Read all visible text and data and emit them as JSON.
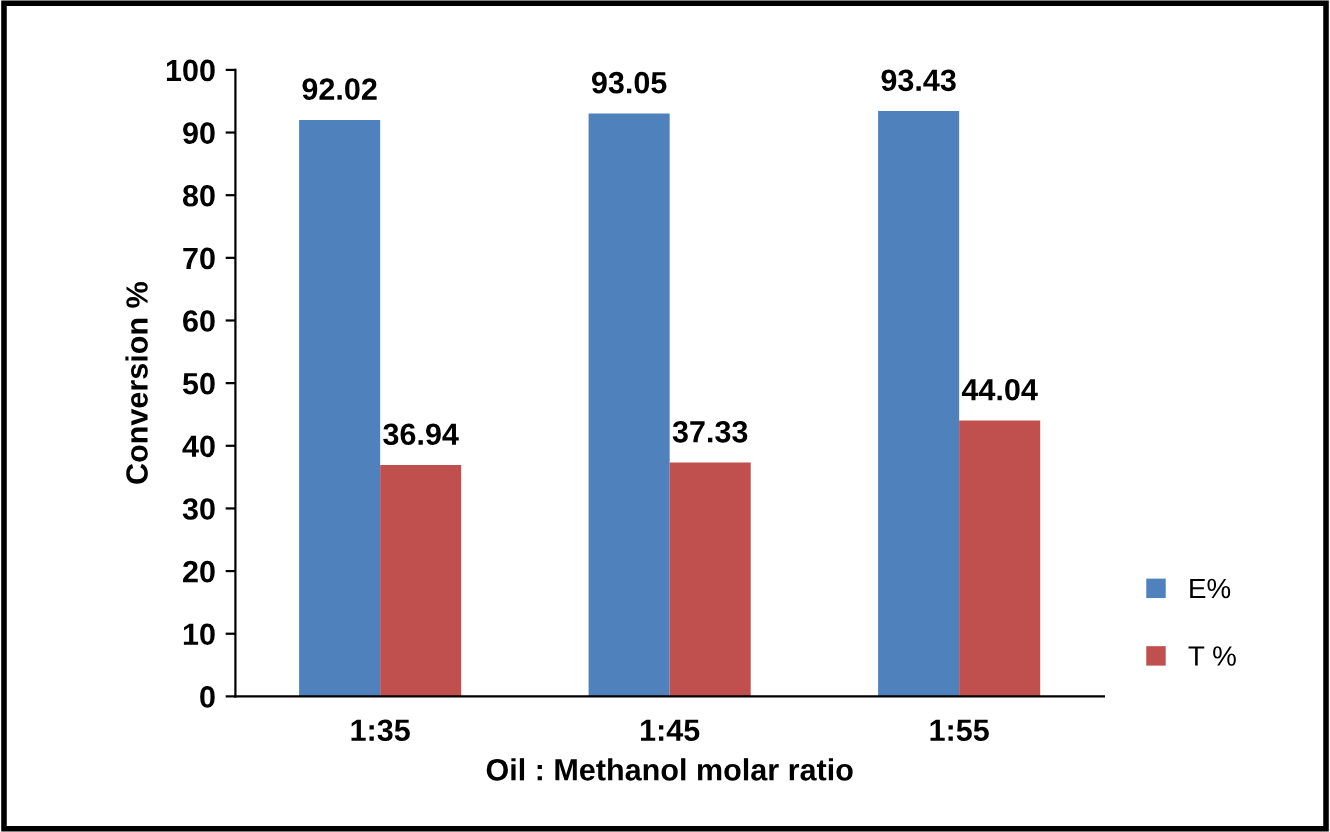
{
  "chart_data": {
    "type": "bar",
    "xlabel": "Oil : Methanol molar ratio",
    "ylabel": "Conversion %",
    "categories": [
      "1:35",
      "1:45",
      "1:55"
    ],
    "series": [
      {
        "name": "E%",
        "color": "#4f81bd",
        "values": [
          92.02,
          93.05,
          93.43
        ]
      },
      {
        "name": "T %",
        "color": "#c0504d",
        "values": [
          36.94,
          37.33,
          44.04
        ]
      }
    ],
    "ylim": [
      0,
      100
    ],
    "yticks": [
      0,
      10,
      20,
      30,
      40,
      50,
      60,
      70,
      80,
      90,
      100
    ],
    "data_labels": true,
    "grid": false,
    "legend": "right"
  }
}
